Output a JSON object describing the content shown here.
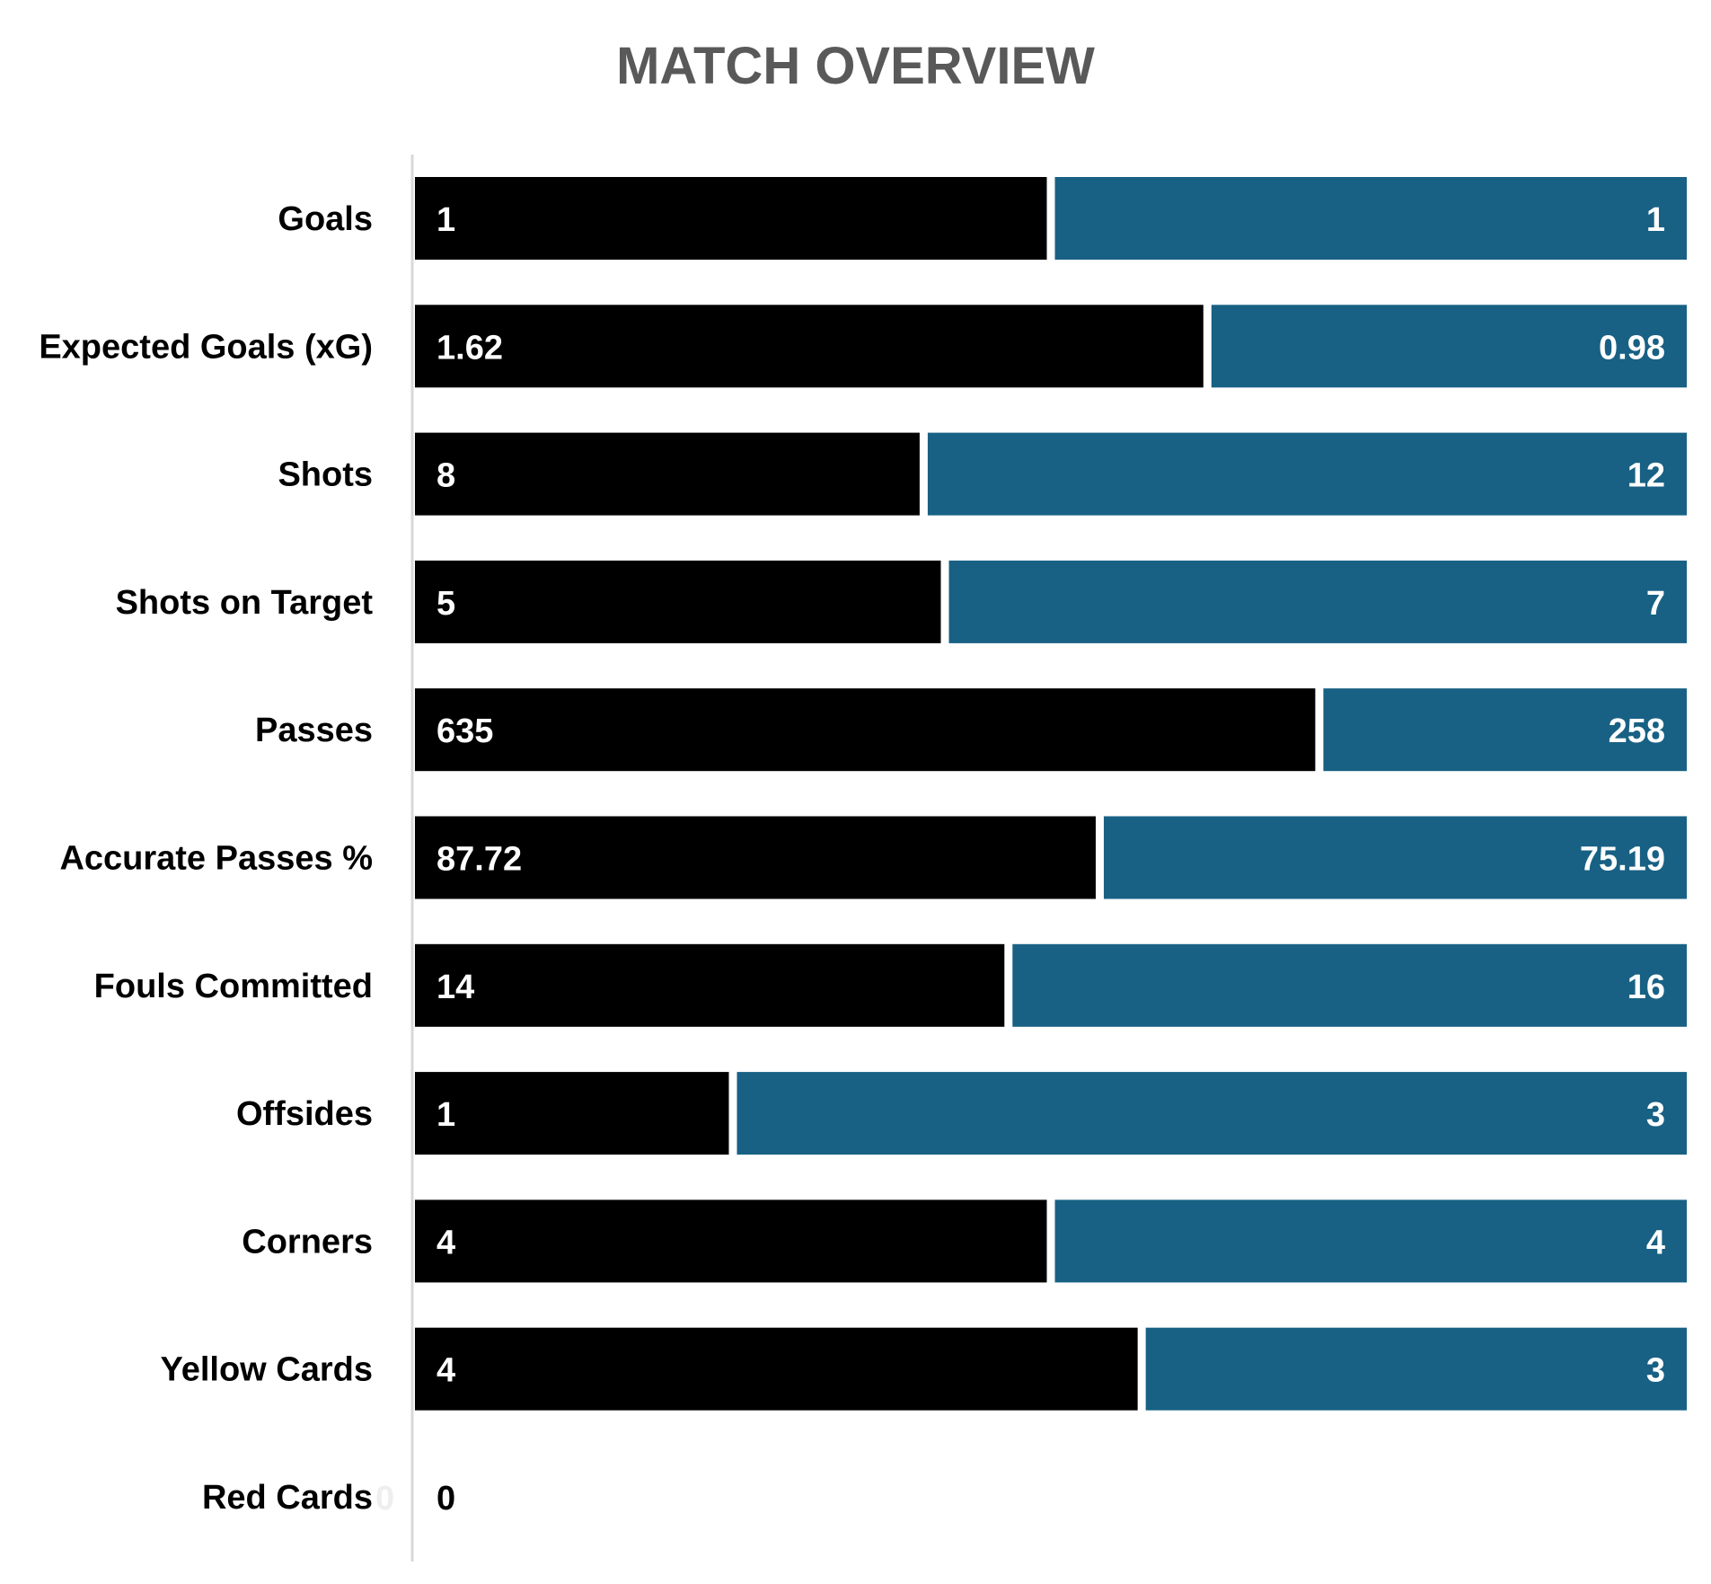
{
  "chart_data": {
    "type": "bar",
    "orientation": "horizontal",
    "stacking": "percent",
    "title": "MATCH OVERVIEW",
    "categories": [
      "Goals",
      "Expected Goals (xG)",
      "Shots",
      "Shots on Target",
      "Passes",
      "Accurate Passes %",
      "Fouls Committed",
      "Offsides",
      "Corners",
      "Yellow Cards",
      "Red Cards"
    ],
    "series": [
      {
        "values": [
          1,
          1.62,
          8,
          5,
          635,
          87.72,
          14,
          1,
          4,
          4,
          0
        ],
        "labels": [
          "1",
          "1.62",
          "8",
          "5",
          "635",
          "87.72",
          "14",
          "1",
          "4",
          "4",
          "0"
        ],
        "color": "#000000",
        "label_color": "#ffffff"
      },
      {
        "values": [
          1,
          0.98,
          12,
          7,
          258,
          75.19,
          16,
          3,
          4,
          3,
          0
        ],
        "labels": [
          "1",
          "0.98",
          "12",
          "7",
          "258",
          "75.19",
          "16",
          "3",
          "4",
          "3",
          "0"
        ],
        "color": "#186184",
        "label_color": "#ffffff"
      }
    ],
    "grid": false,
    "legend": "none"
  }
}
